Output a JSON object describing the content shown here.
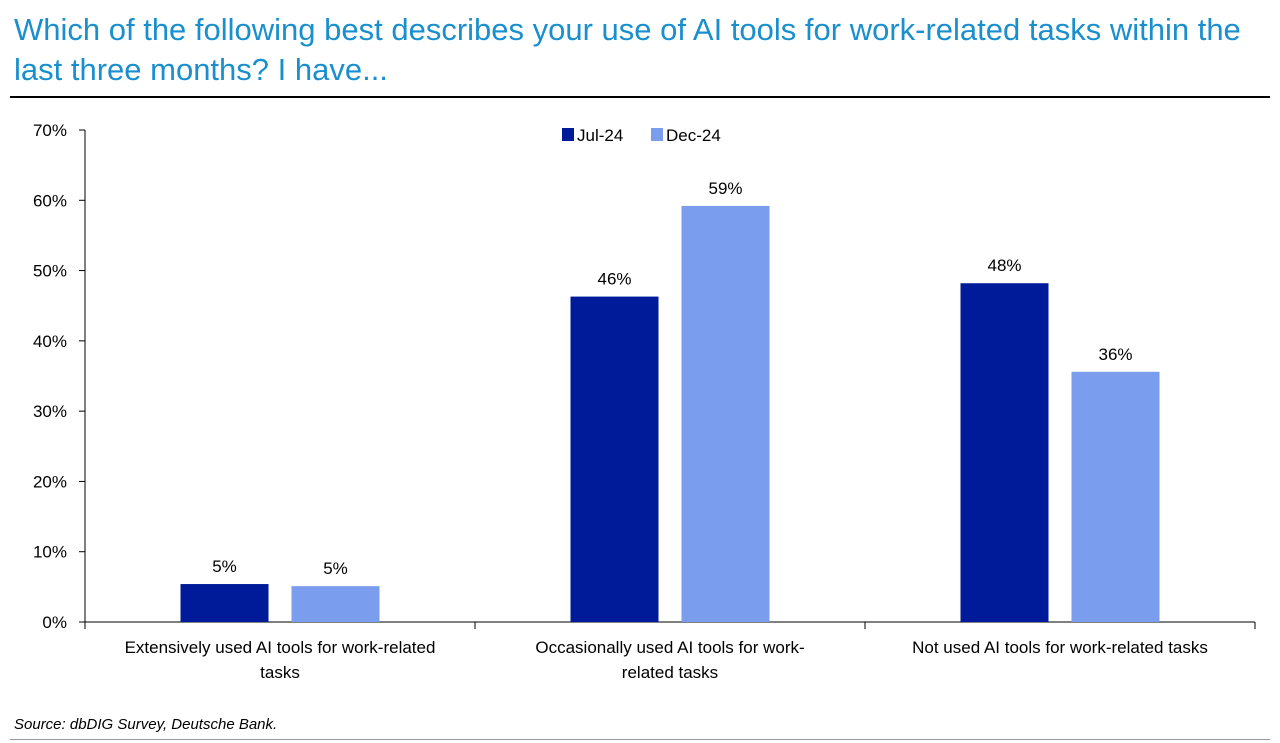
{
  "title": "Which of the following best describes your use of AI tools for work-related tasks within the last three months? I have...",
  "source": "Source: dbDIG Survey, Deutsche Bank.",
  "colors": {
    "title": "#1a8fce",
    "Jul-24": "#001b9a",
    "Dec-24": "#7b9ded"
  },
  "chart_data": {
    "type": "bar",
    "categories": [
      [
        "Extensively used AI tools for work-related",
        "tasks"
      ],
      [
        "Occasionally used AI tools for work-",
        "related tasks"
      ],
      [
        "Not used AI tools for work-related tasks"
      ]
    ],
    "series": [
      {
        "name": "Jul-24",
        "values": [
          5.4,
          46.3,
          48.2
        ],
        "labels": [
          "5%",
          "46%",
          "48%"
        ]
      },
      {
        "name": "Dec-24",
        "values": [
          5.1,
          59.2,
          35.6
        ],
        "labels": [
          "5%",
          "59%",
          "36%"
        ]
      }
    ],
    "ylim": [
      0,
      70
    ],
    "yticks": [
      "0%",
      "10%",
      "20%",
      "30%",
      "40%",
      "50%",
      "60%",
      "70%"
    ],
    "grid": false,
    "legend_position": "top-center"
  }
}
